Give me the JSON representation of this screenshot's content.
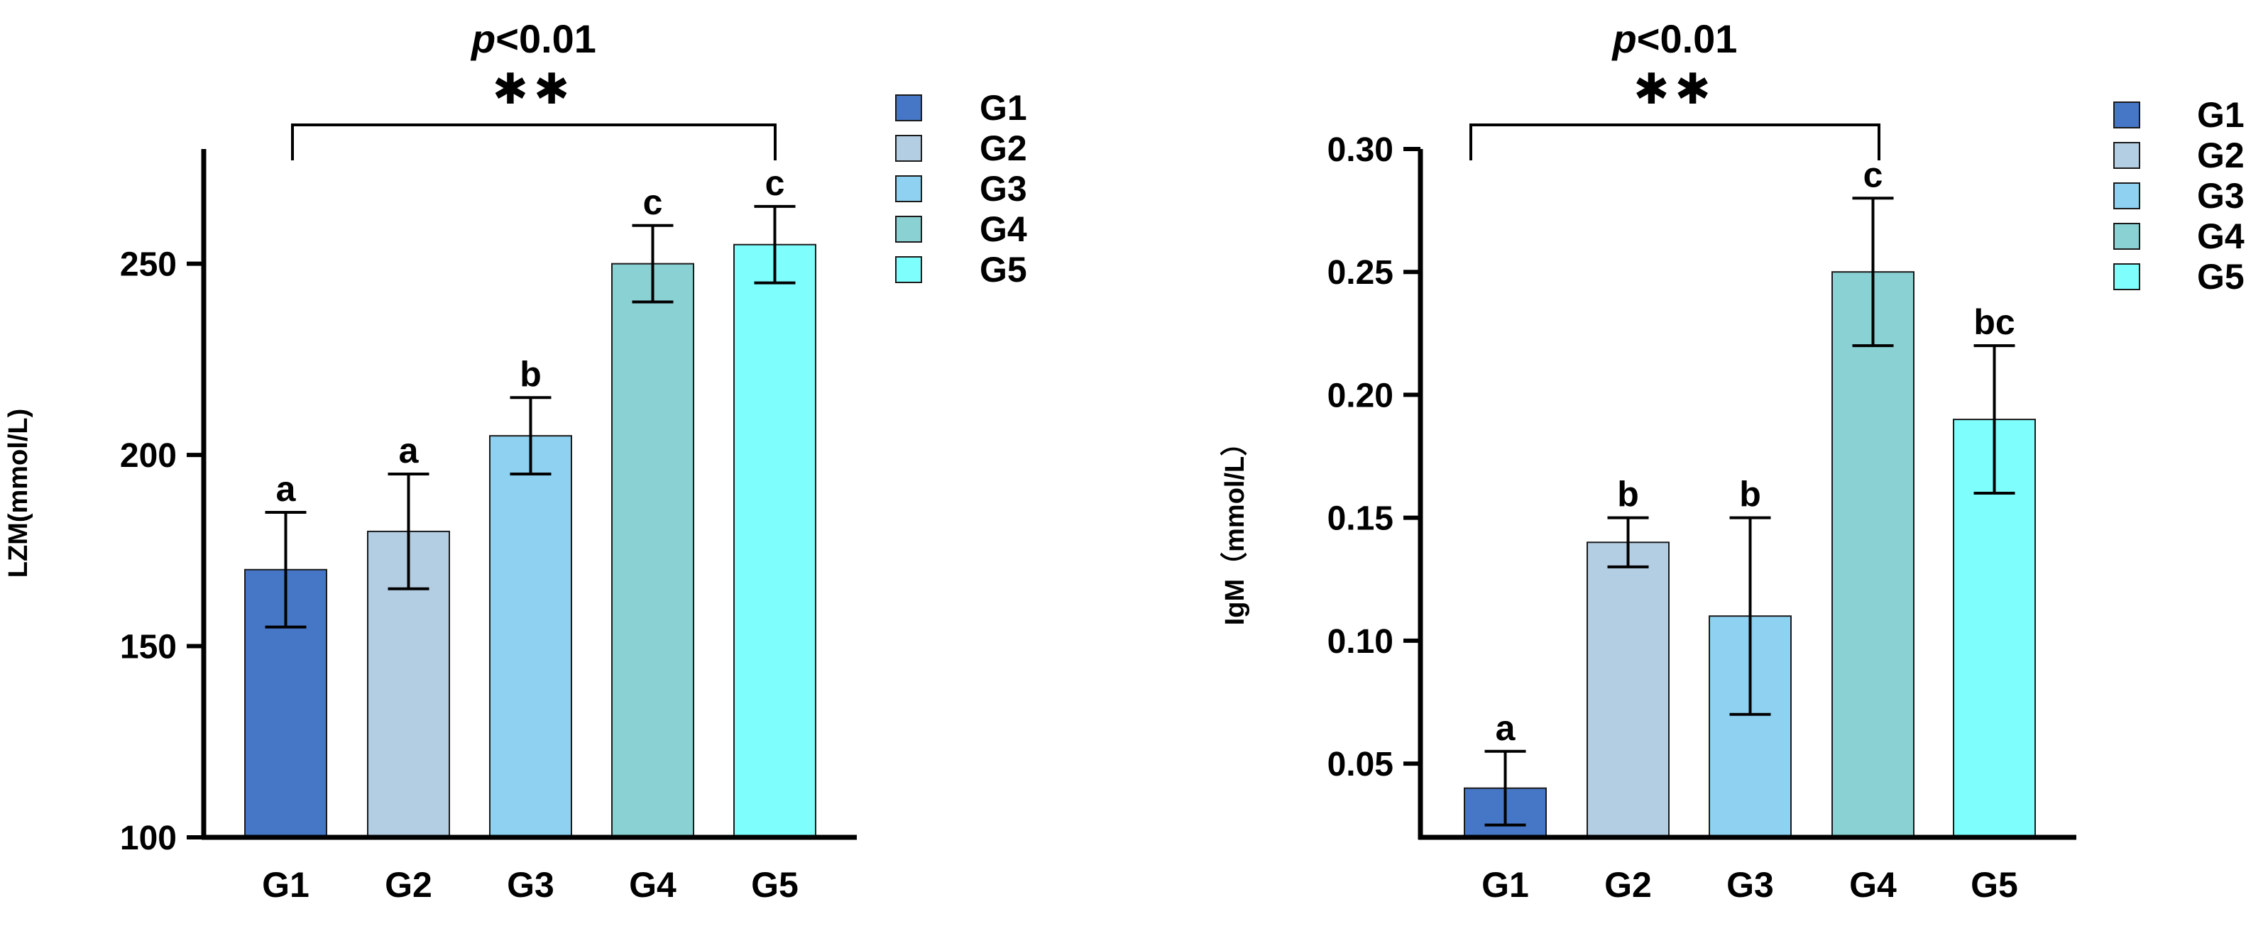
{
  "chart_data": [
    {
      "type": "bar",
      "ylabel": "LZM(mmol/L)",
      "categories": [
        "G1",
        "G2",
        "G3",
        "G4",
        "G5"
      ],
      "values": [
        170,
        180,
        205,
        250,
        255
      ],
      "errors": [
        15,
        15,
        10,
        10,
        10
      ],
      "letters": [
        "a",
        "a",
        "b",
        "c",
        "c"
      ],
      "colors": [
        "#4577c6",
        "#b3cde3",
        "#8ed1f0",
        "#8ad1d4",
        "#7ffefe"
      ],
      "ylim": [
        100,
        280
      ],
      "yticks": [
        100,
        150,
        200,
        250
      ],
      "significance": {
        "p_text": "p",
        "p_rest": "<0.01",
        "stars": "✱✱",
        "from": "G1",
        "to": "G5"
      },
      "legend": [
        "G1",
        "G2",
        "G3",
        "G4",
        "G5"
      ]
    },
    {
      "type": "bar",
      "ylabel": "IgM（mmol/L）",
      "categories": [
        "G1",
        "G2",
        "G3",
        "G4",
        "G5"
      ],
      "values": [
        0.04,
        0.14,
        0.11,
        0.25,
        0.19
      ],
      "errors": [
        0.015,
        0.01,
        0.04,
        0.03,
        0.03
      ],
      "letters": [
        "a",
        "b",
        "b",
        "c",
        "bc"
      ],
      "colors": [
        "#4577c6",
        "#b3cde3",
        "#8ed1f0",
        "#8ad1d4",
        "#7ffefe"
      ],
      "ylim": [
        0.02,
        0.3
      ],
      "yticks": [
        "0.05",
        "0.10",
        "0.15",
        "0.20",
        "0.25",
        "0.30"
      ],
      "significance": {
        "p_text": "p",
        "p_rest": "<0.01",
        "stars": "✱✱",
        "from": "G1",
        "to": "G4"
      },
      "legend": [
        "G1",
        "G2",
        "G3",
        "G4",
        "G5"
      ]
    }
  ]
}
